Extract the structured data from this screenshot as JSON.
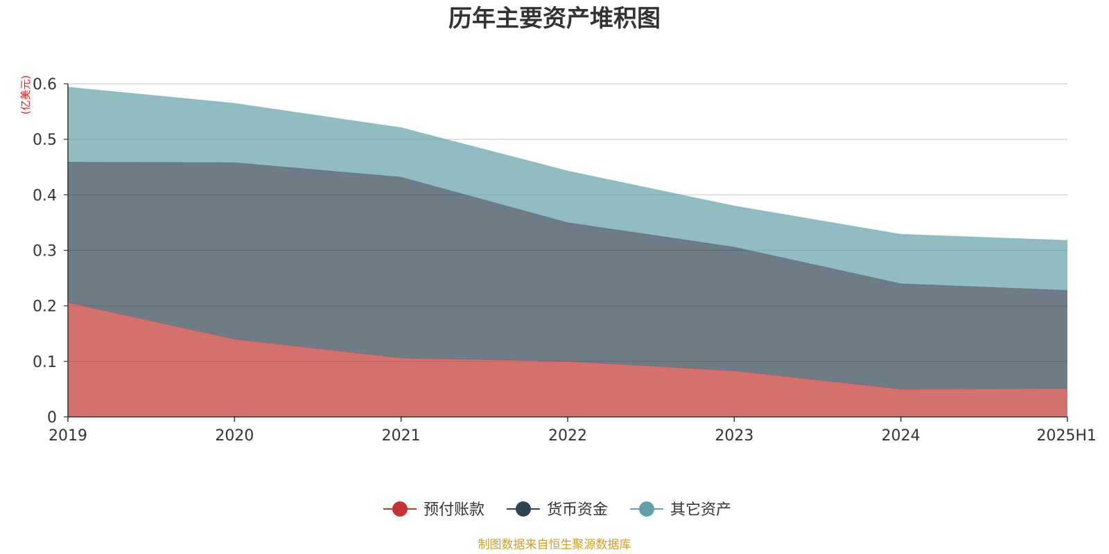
{
  "chart_data": {
    "type": "area",
    "stacked": true,
    "title": "历年主要资产堆积图",
    "unit_label": "(亿美元)",
    "categories": [
      "2019",
      "2020",
      "2021",
      "2022",
      "2023",
      "2024",
      "2025H1"
    ],
    "series": [
      {
        "name": "预付账款",
        "color": "#c23531",
        "values": [
          0.206,
          0.14,
          0.106,
          0.1,
          0.083,
          0.05,
          0.051
        ]
      },
      {
        "name": "货币资金",
        "color": "#2f4554",
        "values": [
          0.253,
          0.318,
          0.326,
          0.25,
          0.223,
          0.19,
          0.177
        ]
      },
      {
        "name": "其它资产",
        "color": "#61a0a8",
        "values": [
          0.135,
          0.107,
          0.089,
          0.093,
          0.074,
          0.089,
          0.09
        ]
      }
    ],
    "ylim": [
      0,
      0.6
    ],
    "yticks": [
      "0",
      "0.1",
      "0.2",
      "0.3",
      "0.4",
      "0.5",
      "0.6"
    ],
    "grid": true,
    "legend_position": "bottom-center",
    "unit_color": "#e02020",
    "source_color": "#c9a227",
    "source": "制图数据来自恒生聚源数据库"
  }
}
